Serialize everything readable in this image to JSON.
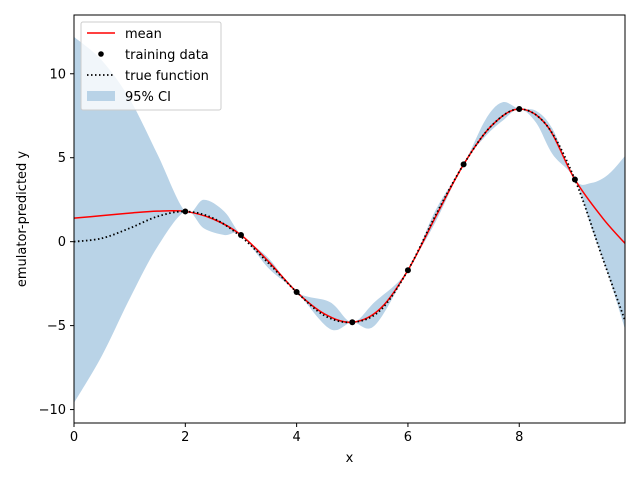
{
  "chart_data": {
    "type": "line",
    "title": "",
    "xlabel": "x",
    "ylabel": "emulator-predicted y",
    "xlim": [
      0,
      9.9
    ],
    "ylim": [
      -10.8,
      13.5
    ],
    "xticks": [
      0,
      2,
      4,
      6,
      8
    ],
    "yticks": [
      -10,
      -5,
      0,
      5,
      10
    ],
    "xtick_labels": [
      "0",
      "2",
      "4",
      "6",
      "8"
    ],
    "ytick_labels": [
      "−10",
      "−5",
      "0",
      "5",
      "10"
    ],
    "grid": false,
    "legend_position": "top-left",
    "colors": {
      "mean": "#ff0000",
      "training": "#000000",
      "true_function": "#000000",
      "ci": "#b9d3e7"
    },
    "series": [
      {
        "name": "mean",
        "style": "solid",
        "x": [
          0,
          0.5,
          1,
          1.5,
          2,
          2.5,
          3,
          3.5,
          4,
          4.5,
          5,
          5.5,
          6,
          6.5,
          7,
          7.5,
          8,
          8.5,
          9,
          9.5,
          9.9
        ],
        "y": [
          1.4,
          1.55,
          1.7,
          1.82,
          1.8,
          1.35,
          0.4,
          -1.2,
          -3.0,
          -4.3,
          -4.8,
          -4.0,
          -1.7,
          1.5,
          4.6,
          6.9,
          7.9,
          6.9,
          3.7,
          1.4,
          -0.1
        ]
      },
      {
        "name": "true function",
        "style": "dotted",
        "x": [
          0,
          0.5,
          1,
          1.5,
          2,
          2.5,
          3,
          3.5,
          4,
          4.5,
          5,
          5.5,
          6,
          6.5,
          7,
          7.5,
          8,
          8.5,
          9,
          9.5,
          9.9
        ],
        "y": [
          0.0,
          0.2,
          0.8,
          1.5,
          1.8,
          1.4,
          0.3,
          -1.3,
          -3.0,
          -4.4,
          -4.8,
          -4.1,
          -1.7,
          1.6,
          4.6,
          6.9,
          7.9,
          6.9,
          3.7,
          -1.0,
          -4.7
        ]
      },
      {
        "name": "training data",
        "style": "points",
        "x": [
          2,
          3,
          4,
          5,
          6,
          7,
          8,
          9
        ],
        "y": [
          1.8,
          0.4,
          -3.0,
          -4.8,
          -1.7,
          4.6,
          7.9,
          3.7
        ]
      }
    ],
    "band": {
      "name": "95% CI",
      "x": [
        0,
        0.5,
        1,
        1.5,
        2,
        2.33,
        2.7,
        3,
        3.5,
        4,
        4.6,
        5,
        5.4,
        6,
        6.5,
        7,
        7.4,
        7.7,
        8,
        8.3,
        8.6,
        9,
        9.3,
        9.6,
        9.9
      ],
      "upper": [
        12.2,
        10.8,
        8.5,
        5.2,
        1.8,
        2.5,
        1.8,
        0.4,
        -1.0,
        -3.0,
        -3.6,
        -4.8,
        -3.6,
        -1.7,
        1.9,
        4.6,
        7.3,
        8.3,
        7.9,
        7.8,
        6.7,
        3.7,
        3.5,
        4.0,
        5.1
      ],
      "lower": [
        -9.6,
        -6.8,
        -3.4,
        -0.3,
        1.8,
        0.8,
        0.4,
        0.4,
        -1.6,
        -3.0,
        -5.2,
        -4.8,
        -5.0,
        -1.7,
        1.2,
        4.6,
        6.3,
        7.2,
        7.9,
        7.1,
        5.2,
        3.7,
        0.8,
        -2.0,
        -5.2
      ]
    },
    "legend": [
      "mean",
      "training data",
      "true function",
      "95% CI"
    ]
  }
}
